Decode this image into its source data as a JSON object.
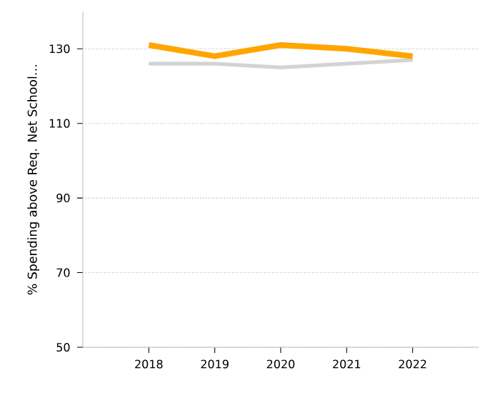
{
  "chart_data": {
    "type": "line",
    "ylabel": "% Spending above Req. Net School…",
    "categories": [
      "2018",
      "2019",
      "2020",
      "2021",
      "2022"
    ],
    "series": [
      {
        "color": "#d3d3d3",
        "values": [
          126,
          126,
          125,
          126,
          127
        ]
      },
      {
        "color": "#ffa500",
        "values": [
          131,
          128,
          131,
          130,
          128
        ]
      }
    ],
    "ylim": [
      50,
      140
    ],
    "yticks": [
      50,
      70,
      90,
      110,
      130
    ],
    "grid": "y",
    "marker": "none",
    "line_style": "solid"
  }
}
